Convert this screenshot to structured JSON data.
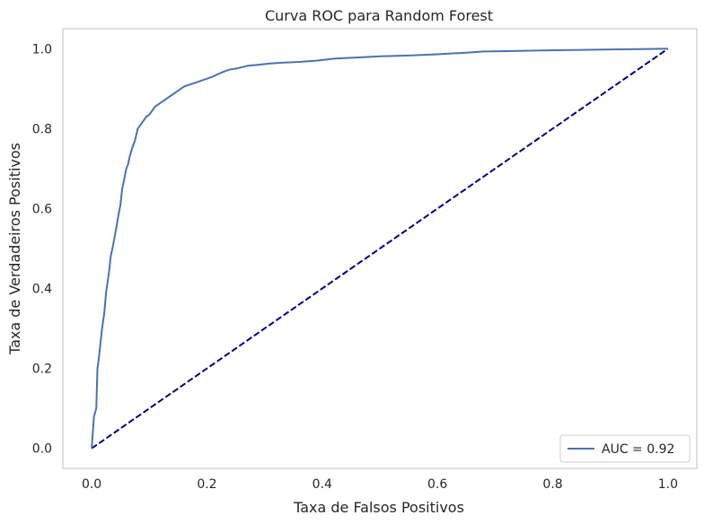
{
  "chart_data": {
    "type": "line",
    "title": "Curva ROC para Random Forest",
    "xlabel": "Taxa de Falsos Positivos",
    "ylabel": "Taxa de Verdadeiros Positivos",
    "xlim": [
      -0.05,
      1.05
    ],
    "ylim": [
      -0.05,
      1.05
    ],
    "xticks": [
      "0.0",
      "0.2",
      "0.4",
      "0.6",
      "0.8",
      "1.0"
    ],
    "yticks": [
      "0.0",
      "0.2",
      "0.4",
      "0.6",
      "0.8",
      "1.0"
    ],
    "grid": false,
    "legend_position": "lower-right",
    "series": [
      {
        "name": "AUC = 0.92",
        "color": "#4c72b0",
        "style": "solid",
        "x": [
          0.0,
          0.004,
          0.008,
          0.01,
          0.012,
          0.015,
          0.018,
          0.02,
          0.022,
          0.025,
          0.028,
          0.03,
          0.033,
          0.036,
          0.04,
          0.043,
          0.046,
          0.05,
          0.053,
          0.056,
          0.06,
          0.063,
          0.066,
          0.07,
          0.075,
          0.08,
          0.085,
          0.09,
          0.095,
          0.1,
          0.11,
          0.12,
          0.13,
          0.14,
          0.15,
          0.16,
          0.17,
          0.18,
          0.19,
          0.2,
          0.21,
          0.22,
          0.23,
          0.24,
          0.25,
          0.27,
          0.29,
          0.31,
          0.33,
          0.36,
          0.39,
          0.42,
          0.46,
          0.5,
          0.55,
          0.6,
          0.65,
          0.68,
          0.72,
          0.76,
          0.8,
          0.85,
          0.9,
          0.95,
          1.0
        ],
        "y": [
          0.0,
          0.08,
          0.1,
          0.2,
          0.22,
          0.26,
          0.3,
          0.32,
          0.34,
          0.39,
          0.42,
          0.44,
          0.48,
          0.5,
          0.53,
          0.555,
          0.58,
          0.61,
          0.65,
          0.67,
          0.7,
          0.71,
          0.73,
          0.75,
          0.77,
          0.8,
          0.81,
          0.82,
          0.83,
          0.835,
          0.855,
          0.865,
          0.875,
          0.885,
          0.895,
          0.905,
          0.91,
          0.915,
          0.92,
          0.925,
          0.93,
          0.937,
          0.943,
          0.948,
          0.95,
          0.957,
          0.96,
          0.963,
          0.965,
          0.967,
          0.97,
          0.975,
          0.978,
          0.981,
          0.983,
          0.986,
          0.99,
          0.993,
          0.994,
          0.995,
          0.996,
          0.997,
          0.998,
          0.999,
          1.0
        ]
      },
      {
        "name": "",
        "color": "#000080",
        "style": "dashed",
        "x": [
          0.0,
          1.0
        ],
        "y": [
          0.0,
          1.0
        ]
      }
    ]
  }
}
